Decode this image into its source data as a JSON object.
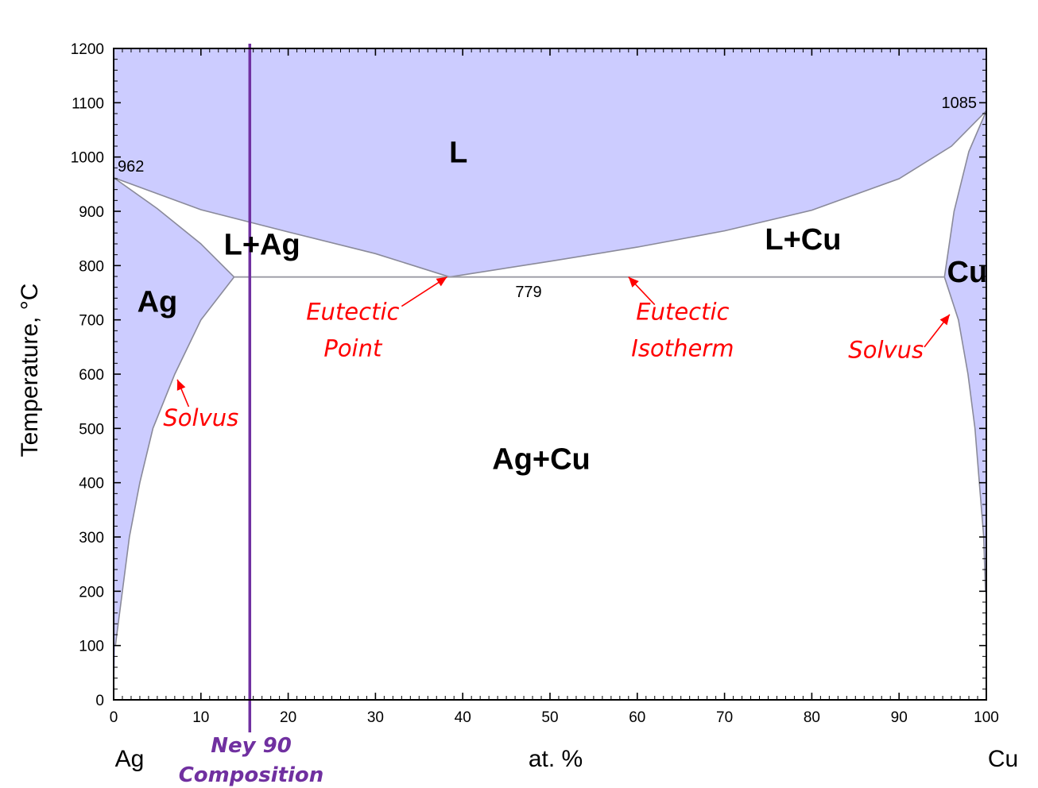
{
  "chart_data": {
    "type": "phase-diagram",
    "ylabel": "Temperature, °C",
    "xlabel": "at. %",
    "x_left_component": "Ag",
    "x_right_component": "Cu",
    "xlim": [
      0,
      100
    ],
    "ylim": [
      0,
      1200
    ],
    "x_ticks": [
      0,
      10,
      20,
      30,
      40,
      50,
      60,
      70,
      80,
      90,
      100
    ],
    "y_ticks": [
      0,
      100,
      200,
      300,
      400,
      500,
      600,
      700,
      800,
      900,
      1000,
      1100,
      1200
    ],
    "colors": {
      "single_phase_fill": "#ccccff",
      "boundary": "#8a8a9a",
      "annotation": "#ff0000",
      "ney_line": "#7030a0"
    },
    "key_points": {
      "ag_melting": {
        "x": 0,
        "y": 962,
        "label": "962"
      },
      "cu_melting": {
        "x": 100,
        "y": 1085,
        "label": "1085"
      },
      "eutectic_temp_label": "779",
      "eutectic": {
        "x": 38.5,
        "y": 779
      },
      "ag_max_solubility": {
        "x": 13.8,
        "y": 779
      },
      "cu_max_solubility": {
        "x": 95.2,
        "y": 779
      }
    },
    "boundaries": {
      "liquidus_ag": [
        [
          0,
          962
        ],
        [
          10,
          903
        ],
        [
          20,
          862
        ],
        [
          30,
          822
        ],
        [
          38.5,
          779
        ]
      ],
      "liquidus_cu": [
        [
          38.5,
          779
        ],
        [
          50,
          808
        ],
        [
          60,
          834
        ],
        [
          70,
          864
        ],
        [
          80,
          902
        ],
        [
          90,
          960
        ],
        [
          96,
          1020
        ],
        [
          100,
          1085
        ]
      ],
      "solidus_ag": [
        [
          0,
          962
        ],
        [
          5,
          905
        ],
        [
          10,
          840
        ],
        [
          13.8,
          779
        ]
      ],
      "solvus_ag": [
        [
          13.8,
          779
        ],
        [
          10,
          700
        ],
        [
          7,
          600
        ],
        [
          4.5,
          500
        ],
        [
          3,
          400
        ],
        [
          1.8,
          300
        ],
        [
          1,
          200
        ],
        [
          0.2,
          100
        ]
      ],
      "solidus_cu": [
        [
          100,
          1085
        ],
        [
          98,
          1010
        ],
        [
          96.3,
          900
        ],
        [
          95.2,
          779
        ]
      ],
      "solvus_cu": [
        [
          95.2,
          779
        ],
        [
          96.8,
          700
        ],
        [
          97.9,
          600
        ],
        [
          98.7,
          500
        ],
        [
          99.2,
          400
        ],
        [
          99.7,
          300
        ],
        [
          99.9,
          200
        ]
      ]
    },
    "eutectic_isotherm": {
      "y": 779,
      "x_start": 13.8,
      "x_end": 95.2
    },
    "ney90_composition_x": 15.6,
    "phase_labels": [
      {
        "text": "L",
        "x": 39.5,
        "y": 990
      },
      {
        "text": "L+Ag",
        "x": 17,
        "y": 820
      },
      {
        "text": "L+Cu",
        "x": 79,
        "y": 830
      },
      {
        "text": "Ag",
        "x": 5,
        "y": 715
      },
      {
        "text": "Cu",
        "x": 97.8,
        "y": 770
      },
      {
        "text": "Ag+Cu",
        "x": 49,
        "y": 425
      }
    ],
    "annotations": [
      {
        "lines": [
          "Eutectic",
          "Point"
        ],
        "text_at": [
          27.4,
          700
        ],
        "arrow_from": [
          33,
          725
        ],
        "arrow_to": [
          38.2,
          779
        ]
      },
      {
        "lines": [
          "Eutectic",
          "Isotherm"
        ],
        "text_at": [
          65.2,
          700
        ],
        "arrow_from": [
          62,
          728
        ],
        "arrow_to": [
          59,
          779
        ]
      },
      {
        "lines": [
          "Solvus"
        ],
        "text_at": [
          88.5,
          630
        ],
        "arrow_from": [
          92.9,
          650
        ],
        "arrow_to": [
          95.8,
          710
        ]
      },
      {
        "lines": [
          "Solvus"
        ],
        "text_at": [
          10,
          505
        ],
        "arrow_from": [
          8.6,
          540
        ],
        "arrow_to": [
          7.3,
          590
        ]
      }
    ],
    "ney90_label": [
      "Ney 90",
      "Composition"
    ]
  }
}
